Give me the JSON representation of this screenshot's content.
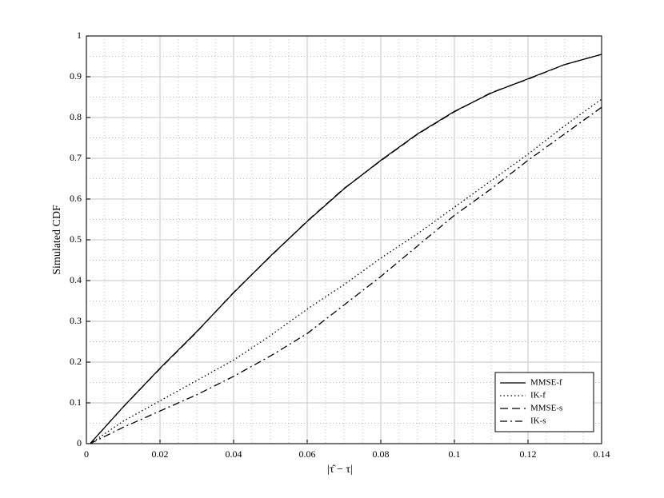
{
  "chart_data": {
    "type": "line",
    "x_label": "|τ̂ − τ|",
    "y_label": "Simulated CDF",
    "x": [
      0.001,
      0.01,
      0.02,
      0.03,
      0.04,
      0.05,
      0.06,
      0.07,
      0.08,
      0.09,
      0.1,
      0.11,
      0.12,
      0.13,
      0.14
    ],
    "series": [
      {
        "name": "MMSE-f",
        "color": "#000000",
        "linestyle": "solid",
        "values": [
          0,
          0.09,
          0.185,
          0.275,
          0.37,
          0.46,
          0.545,
          0.625,
          0.695,
          0.76,
          0.815,
          0.86,
          0.895,
          0.93,
          0.955
        ]
      },
      {
        "name": "IK-f",
        "color": "#000000",
        "linestyle": "dotted",
        "values": [
          0,
          0.055,
          0.105,
          0.155,
          0.205,
          0.265,
          0.33,
          0.39,
          0.455,
          0.515,
          0.58,
          0.645,
          0.71,
          0.78,
          0.845
        ]
      },
      {
        "name": "MMSE-s",
        "color": "#000000",
        "linestyle": "dashed",
        "values": [
          0,
          0.09,
          0.184,
          0.274,
          0.371,
          0.459,
          0.546,
          0.626,
          0.694,
          0.759,
          0.814,
          0.861,
          0.894,
          0.93,
          0.955
        ]
      },
      {
        "name": "IK-s",
        "color": "#000000",
        "linestyle": "dashdot",
        "values": [
          0,
          0.04,
          0.08,
          0.12,
          0.165,
          0.215,
          0.27,
          0.34,
          0.41,
          0.485,
          0.56,
          0.625,
          0.695,
          0.76,
          0.825
        ]
      }
    ],
    "xlim": [
      0,
      0.14
    ],
    "xticks": [
      0,
      0.02,
      0.04,
      0.06,
      0.08,
      0.1,
      0.12,
      0.14
    ],
    "ylim": [
      0,
      1
    ],
    "yticks": [
      0,
      0.1,
      0.2,
      0.3,
      0.4,
      0.5,
      0.6,
      0.7,
      0.8,
      0.9,
      1
    ],
    "grid": true,
    "minor_grid": true,
    "legend": "lower-right"
  }
}
